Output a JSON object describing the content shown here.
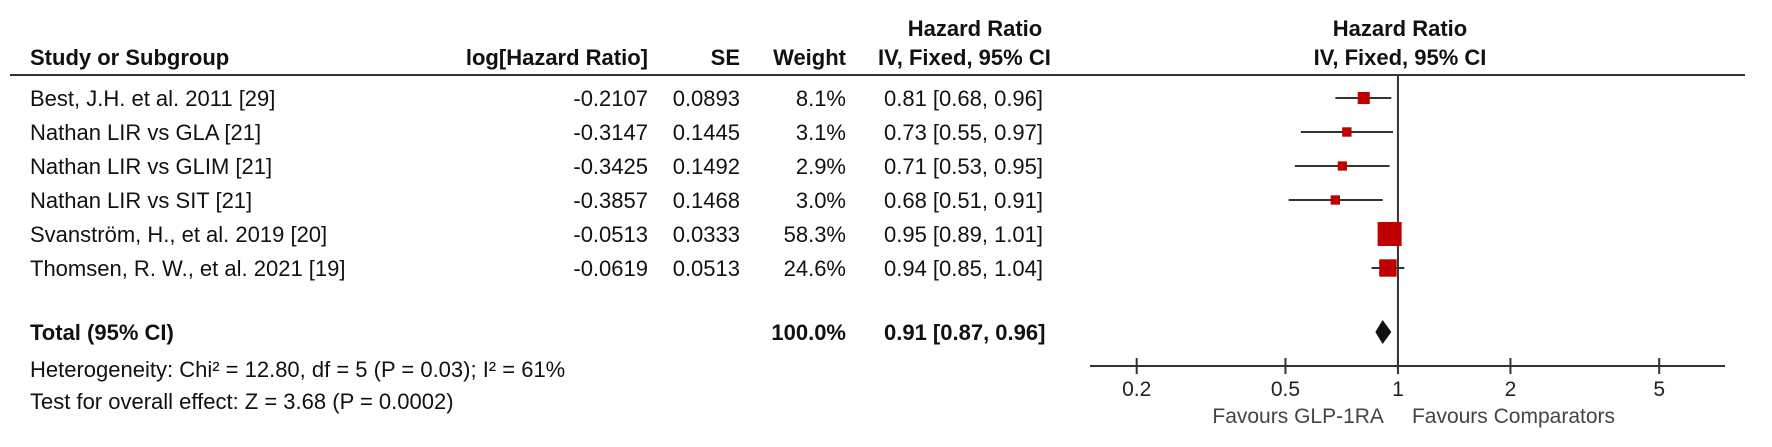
{
  "header": {
    "study_label": "Study or Subgroup",
    "loghr_label": "log[Hazard Ratio]",
    "se_label": "SE",
    "weight_label": "Weight",
    "hr_title": "Hazard Ratio",
    "hr_method": "IV, Fixed, 95% CI",
    "plot_title": "Hazard Ratio",
    "plot_method": "IV, Fixed, 95% CI"
  },
  "studies": [
    {
      "name": "Best, J.H. et al. 2011 [29]",
      "loghr": "-0.2107",
      "se": "0.0893",
      "weight": "8.1%",
      "ci_text": "0.81 [0.68, 0.96]"
    },
    {
      "name": "Nathan LIR vs GLA [21]",
      "loghr": "-0.3147",
      "se": "0.1445",
      "weight": "3.1%",
      "ci_text": "0.73 [0.55, 0.97]"
    },
    {
      "name": "Nathan LIR vs GLIM [21]",
      "loghr": "-0.3425",
      "se": "0.1492",
      "weight": "2.9%",
      "ci_text": "0.71 [0.53, 0.95]"
    },
    {
      "name": "Nathan LIR vs SIT [21]",
      "loghr": "-0.3857",
      "se": "0.1468",
      "weight": "3.0%",
      "ci_text": "0.68 [0.51, 0.91]"
    },
    {
      "name": "Svanström, H., et al. 2019 [20]",
      "loghr": "-0.0513",
      "se": "0.0333",
      "weight": "58.3%",
      "ci_text": "0.95 [0.89, 1.01]"
    },
    {
      "name": "Thomsen, R. W., et al. 2021 [19]",
      "loghr": "-0.0619",
      "se": "0.0513",
      "weight": "24.6%",
      "ci_text": "0.94 [0.85, 1.04]"
    }
  ],
  "total": {
    "label": "Total (95% CI)",
    "weight": "100.0%",
    "ci_text": "0.91 [0.87, 0.96]"
  },
  "heterogeneity": "Heterogeneity: Chi² = 12.80, df = 5 (P = 0.03); I² = 61%",
  "overall_effect": "Test for overall effect: Z = 3.68 (P = 0.0002)",
  "axis": {
    "favours_left": "Favours GLP-1RA",
    "favours_right": "Favours Comparators"
  },
  "colors": {
    "marker": "#c00000",
    "line": "#333333",
    "diamond": "#111111"
  },
  "chart_data": {
    "type": "forest",
    "scale": "log",
    "xlim": [
      0.15,
      7.5
    ],
    "ticks": [
      0.2,
      0.5,
      1,
      2,
      5
    ],
    "tick_labels": [
      "0.2",
      "0.5",
      "1",
      "2",
      "5"
    ],
    "reference": 1,
    "series": [
      {
        "hr": 0.81,
        "lo": 0.68,
        "hi": 0.96,
        "weight": 8.1
      },
      {
        "hr": 0.73,
        "lo": 0.55,
        "hi": 0.97,
        "weight": 3.1
      },
      {
        "hr": 0.71,
        "lo": 0.53,
        "hi": 0.95,
        "weight": 2.9
      },
      {
        "hr": 0.68,
        "lo": 0.51,
        "hi": 0.91,
        "weight": 3.0
      },
      {
        "hr": 0.95,
        "lo": 0.89,
        "hi": 1.01,
        "weight": 58.3
      },
      {
        "hr": 0.94,
        "lo": 0.85,
        "hi": 1.04,
        "weight": 24.6
      }
    ],
    "pooled": {
      "hr": 0.91,
      "lo": 0.87,
      "hi": 0.96
    }
  }
}
